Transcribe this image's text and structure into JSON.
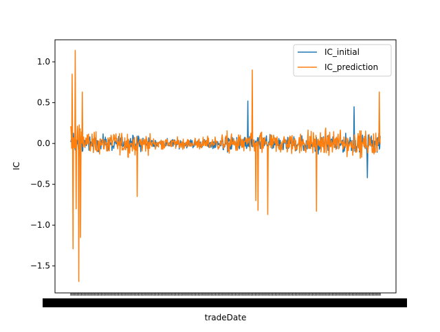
{
  "chart_data": {
    "type": "line",
    "title": "",
    "xlabel": "tradeDate",
    "ylabel": "IC",
    "ylim": [
      -1.83,
      1.27
    ],
    "yticks": [
      -1.5,
      -1.0,
      -0.5,
      0.0,
      0.5,
      1.0
    ],
    "ytick_labels": [
      "−1.5",
      "−1.0",
      "−0.5",
      "0.0",
      "0.5",
      "1.0"
    ],
    "x_tick_labels_note": "dense overlapping date tick labels rendered as a solid black band",
    "n_points": 700,
    "legend_position": "upper right",
    "series": [
      {
        "name": "IC_initial",
        "color": "#1f77b4",
        "description": "baseline IC series, mostly within -0.45..0.5, peak ~0.52 near middle"
      },
      {
        "name": "IC_prediction",
        "color": "#ff7f0e",
        "description": "prediction IC series, larger swings: max ~1.14 early, min ~-1.69 early, spikes ~0.9 near middle, -0.87 near middle, 0.63 at end"
      }
    ],
    "key_points": {
      "IC_prediction": [
        {
          "i": 3,
          "y": 0.85
        },
        {
          "i": 5,
          "y": -1.29
        },
        {
          "i": 10,
          "y": 1.14
        },
        {
          "i": 12,
          "y": -0.8
        },
        {
          "i": 18,
          "y": -1.69
        },
        {
          "i": 22,
          "y": -1.15
        },
        {
          "i": 26,
          "y": 0.63
        },
        {
          "i": 150,
          "y": -0.65
        },
        {
          "i": 410,
          "y": 0.9
        },
        {
          "i": 418,
          "y": -0.7
        },
        {
          "i": 423,
          "y": -0.82
        },
        {
          "i": 445,
          "y": -0.87
        },
        {
          "i": 555,
          "y": -0.83
        },
        {
          "i": 697,
          "y": 0.63
        }
      ],
      "IC_initial": [
        {
          "i": 400,
          "y": 0.52
        },
        {
          "i": 640,
          "y": 0.45
        },
        {
          "i": 670,
          "y": -0.42
        }
      ]
    }
  }
}
